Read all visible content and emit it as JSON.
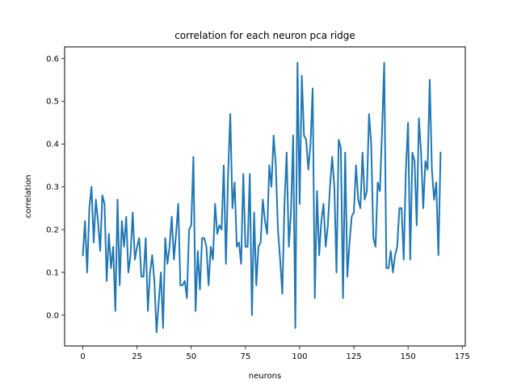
{
  "chart_data": {
    "type": "line",
    "title": "correlation for each neuron pca ridge",
    "xlabel": "neurons",
    "ylabel": "correlation",
    "xlim": [
      -8.4,
      176.4
    ],
    "ylim": [
      -0.072,
      0.627
    ],
    "xticks": [
      0,
      25,
      50,
      75,
      100,
      125,
      150,
      175
    ],
    "yticks": [
      0.0,
      0.1,
      0.2,
      0.3,
      0.4,
      0.5,
      0.6
    ],
    "ytick_labels": [
      "0.0",
      "0.1",
      "0.2",
      "0.3",
      "0.4",
      "0.5",
      "0.6"
    ],
    "grid": false,
    "line_color": "#1f77b4",
    "series": [
      {
        "values": [
          0.14,
          0.22,
          0.1,
          0.25,
          0.3,
          0.17,
          0.27,
          0.22,
          0.15,
          0.28,
          0.26,
          0.08,
          0.19,
          0.11,
          0.16,
          0.01,
          0.27,
          0.07,
          0.22,
          0.16,
          0.23,
          0.1,
          0.14,
          0.24,
          0.13,
          0.16,
          0.18,
          0.09,
          0.09,
          0.18,
          0.01,
          0.1,
          0.14,
          0.08,
          -0.04,
          0.03,
          0.1,
          -0.03,
          0.18,
          0.12,
          0.16,
          0.23,
          0.13,
          0.19,
          0.26,
          0.07,
          0.07,
          0.08,
          0.04,
          0.2,
          0.21,
          0.37,
          0.01,
          0.15,
          0.06,
          0.18,
          0.18,
          0.16,
          0.07,
          0.16,
          0.13,
          0.26,
          0.19,
          0.21,
          0.2,
          0.35,
          0.12,
          0.33,
          0.47,
          0.25,
          0.31,
          0.16,
          0.17,
          0.12,
          0.33,
          0.16,
          0.16,
          0.33,
          0.0,
          0.24,
          0.07,
          0.16,
          0.17,
          0.27,
          0.22,
          0.19,
          0.35,
          0.3,
          0.42,
          0.35,
          0.2,
          0.13,
          0.05,
          0.26,
          0.38,
          0.16,
          0.24,
          0.42,
          -0.03,
          0.59,
          0.26,
          0.56,
          0.42,
          0.41,
          0.34,
          0.4,
          0.53,
          0.04,
          0.29,
          0.14,
          0.22,
          0.26,
          0.16,
          0.21,
          0.3,
          0.37,
          0.3,
          0.1,
          0.41,
          0.39,
          0.04,
          0.38,
          0.09,
          0.17,
          0.23,
          0.24,
          0.35,
          0.27,
          0.25,
          0.38,
          0.27,
          0.29,
          0.47,
          0.4,
          0.18,
          0.16,
          0.31,
          0.29,
          0.43,
          0.59,
          0.11,
          0.11,
          0.15,
          0.1,
          0.14,
          0.16,
          0.25,
          0.25,
          0.13,
          0.34,
          0.45,
          0.13,
          0.38,
          0.36,
          0.21,
          0.46,
          0.38,
          0.25,
          0.36,
          0.34,
          0.55,
          0.34,
          0.27,
          0.31,
          0.14,
          0.38
        ]
      }
    ]
  }
}
